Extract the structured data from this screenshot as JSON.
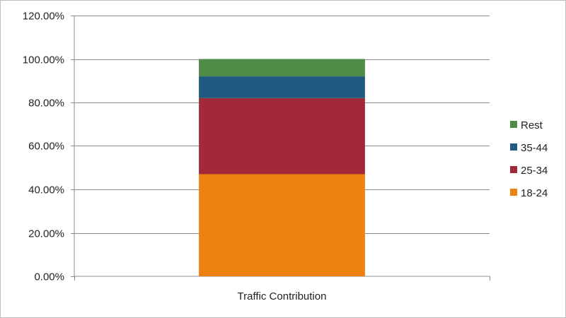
{
  "chart_data": {
    "type": "bar",
    "stacked": true,
    "categories": [
      "Traffic Contribution"
    ],
    "series": [
      {
        "name": "18-24",
        "values": [
          0.47
        ],
        "color": "#ee8211"
      },
      {
        "name": "25-34",
        "values": [
          0.35
        ],
        "color": "#a12939"
      },
      {
        "name": "35-44",
        "values": [
          0.1
        ],
        "color": "#1f5b80"
      },
      {
        "name": "Rest",
        "values": [
          0.08
        ],
        "color": "#4e8c48"
      }
    ],
    "yticks": [
      "0.00%",
      "20.00%",
      "40.00%",
      "60.00%",
      "80.00%",
      "100.00%",
      "120.00%"
    ],
    "ylim": [
      0,
      1.2
    ],
    "ytick_step": 0.2,
    "grid": true,
    "legend": "right",
    "legend_order": [
      "Rest",
      "35-44",
      "25-34",
      "18-24"
    ]
  }
}
